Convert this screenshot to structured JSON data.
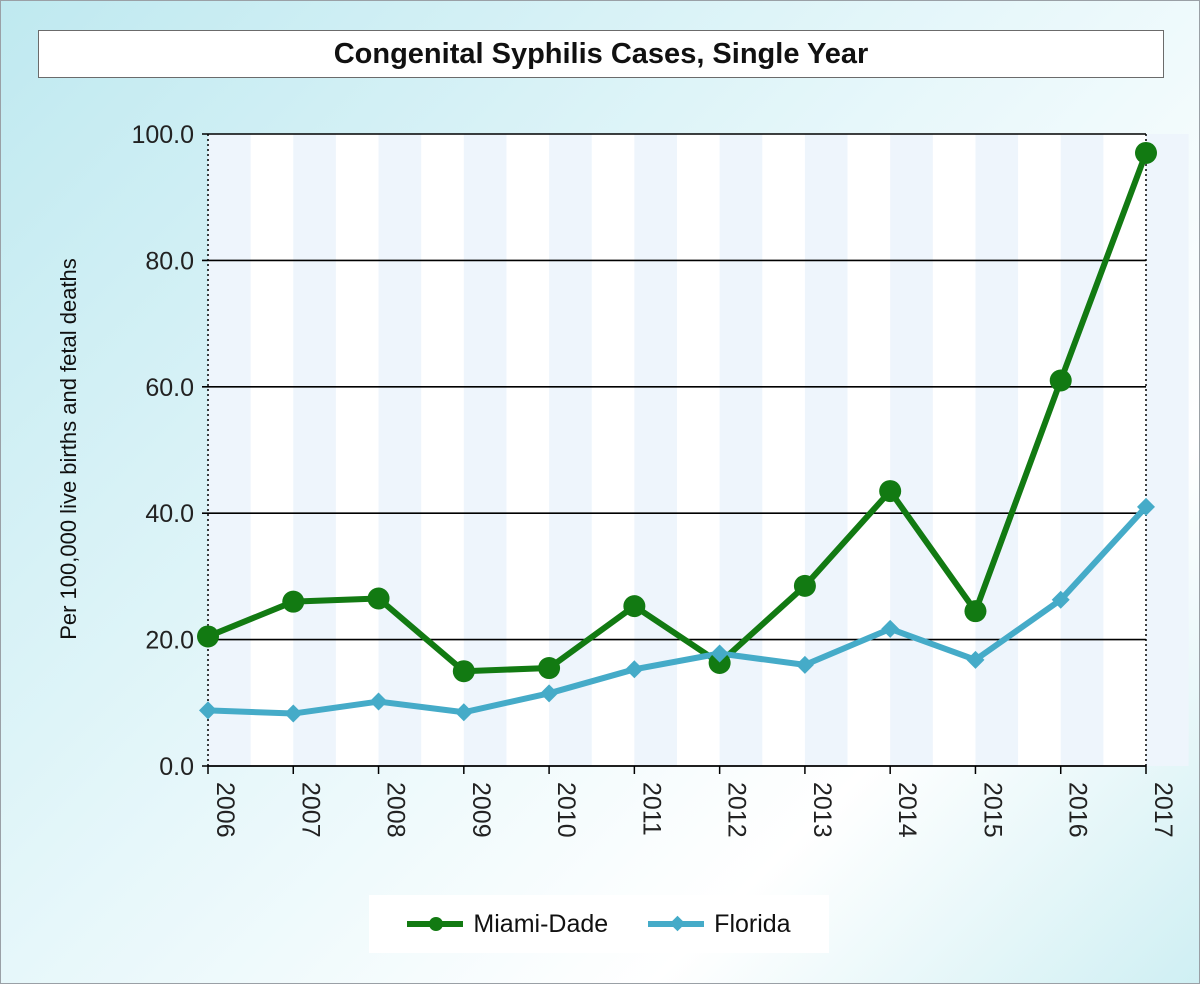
{
  "chart_data": {
    "type": "line",
    "title": "Congenital Syphilis Cases, Single Year",
    "xlabel": "",
    "ylabel": "Per 100,000 live births and fetal deaths",
    "x": [
      "2006",
      "2007",
      "2008",
      "2009",
      "2010",
      "2011",
      "2012",
      "2013",
      "2014",
      "2015",
      "2016",
      "2017"
    ],
    "ylim": [
      0,
      100
    ],
    "yticks": [
      "0.0",
      "20.0",
      "40.0",
      "60.0",
      "80.0",
      "100.0"
    ],
    "grid": "horizontal",
    "legend_position": "bottom",
    "series": [
      {
        "name": "Miami-Dade",
        "color": "#127a12",
        "marker": "circle",
        "values": [
          20.5,
          26.0,
          26.5,
          15.0,
          15.5,
          25.3,
          16.3,
          28.5,
          43.5,
          24.5,
          61.0,
          97.0
        ]
      },
      {
        "name": "Florida",
        "color": "#45abc8",
        "marker": "diamond",
        "values": [
          8.8,
          8.3,
          10.2,
          8.5,
          11.5,
          15.3,
          17.8,
          16.0,
          21.7,
          16.8,
          26.3,
          41.0
        ]
      }
    ]
  }
}
